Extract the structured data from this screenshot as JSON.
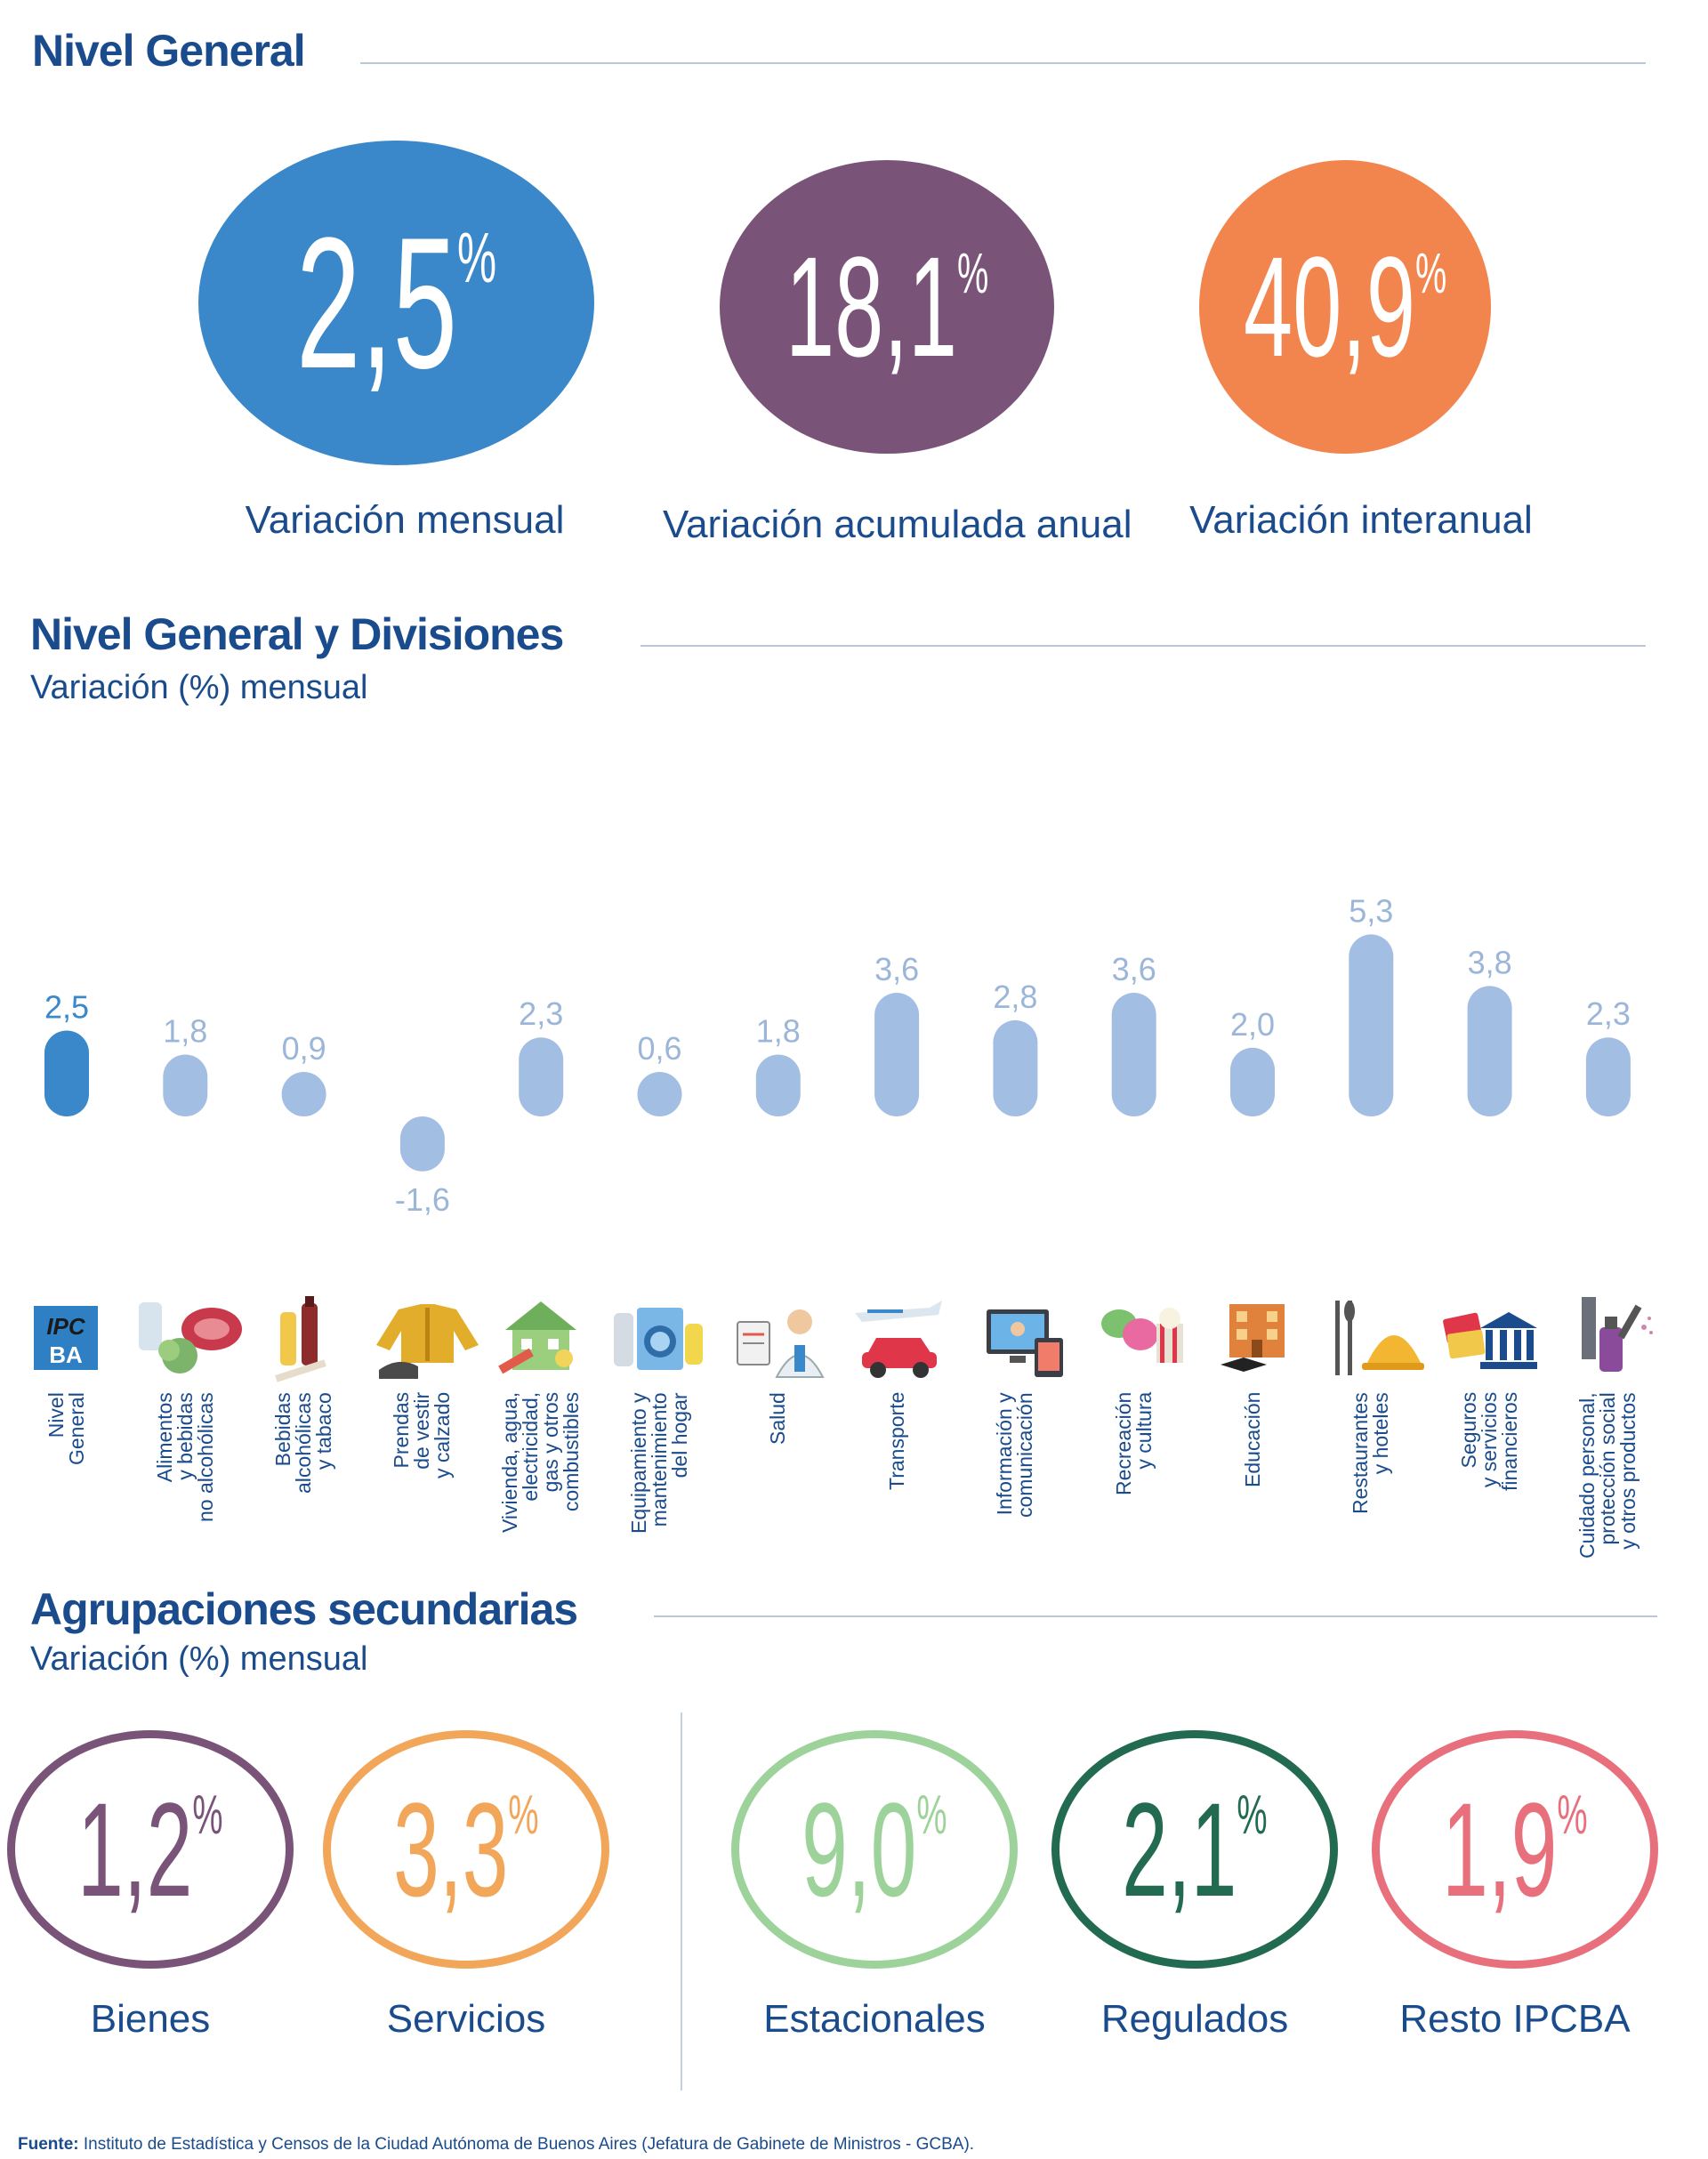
{
  "sections": {
    "general_title": "Nivel General",
    "divisions_title": "Nivel General y Divisiones",
    "divisions_subtitle": "Variación (%) mensual",
    "secondary_title": "Agrupaciones secundarias",
    "secondary_subtitle": "Variación (%) mensual"
  },
  "headline": [
    {
      "value": "2,5",
      "unit": "%",
      "label": "Variación mensual",
      "color": "#3a88c9"
    },
    {
      "value": "18,1",
      "unit": "%",
      "label": "Variación acumulada anual",
      "color": "#7a5478"
    },
    {
      "value": "40,9",
      "unit": "%",
      "label": "Variación interanual",
      "color": "#f2854e"
    }
  ],
  "chart_data": {
    "type": "bar",
    "title": "Nivel General y Divisiones",
    "subtitle": "Variación (%) mensual",
    "categories": [
      [
        "Nivel",
        "General"
      ],
      [
        "Alimentos",
        "y bebidas",
        "no alcohólicas"
      ],
      [
        "Bebidas",
        "alcohólicas",
        "y tabaco"
      ],
      [
        "Prendas",
        "de vestir",
        "y calzado"
      ],
      [
        "Vivienda, agua,",
        "electricidad,",
        "gas y otros",
        "combustibles"
      ],
      [
        "Equipamiento y",
        "mantenimiento",
        "del hogar"
      ],
      [
        "Salud"
      ],
      [
        "Transporte"
      ],
      [
        "Información y",
        "comunicación"
      ],
      [
        "Recreación",
        "y cultura"
      ],
      [
        "Educación"
      ],
      [
        "Restaurantes",
        "y hoteles"
      ],
      [
        "Seguros",
        "y servicios",
        "financieros"
      ],
      [
        "Cuidado personal,",
        "protección social",
        "y otros productos"
      ]
    ],
    "values": [
      2.5,
      1.8,
      0.9,
      -1.6,
      2.3,
      0.6,
      1.8,
      3.6,
      2.8,
      3.6,
      2.0,
      5.3,
      3.8,
      2.3
    ],
    "value_labels": [
      "2,5",
      "1,8",
      "0,9",
      "-1,6",
      "2,3",
      "0,6",
      "1,8",
      "3,6",
      "2,8",
      "3,6",
      "2,0",
      "5,3",
      "3,8",
      "2,3"
    ],
    "highlight_color": "#3a88c9",
    "bar_color": "#a3bee3",
    "label_color": "#9cb6d8",
    "grid": false
  },
  "icons": [
    "ipc-logo-icon",
    "food-icon",
    "beverages-icon",
    "clothing-icon",
    "housing-icon",
    "household-appliance-icon",
    "health-icon",
    "transport-icon",
    "communication-icon",
    "recreation-icon",
    "education-icon",
    "restaurant-icon",
    "finance-icon",
    "personal-care-icon"
  ],
  "ipc_logo": {
    "line1": "IPC",
    "line2": "BA"
  },
  "secondary": [
    {
      "value": "1,2",
      "unit": "%",
      "label": "Bienes",
      "color": "#7a5478"
    },
    {
      "value": "3,3",
      "unit": "%",
      "label": "Servicios",
      "color": "#f2a65a"
    },
    {
      "value": "9,0",
      "unit": "%",
      "label": "Estacionales",
      "color": "#9dd39b"
    },
    {
      "value": "2,1",
      "unit": "%",
      "label": "Regulados",
      "color": "#236b50"
    },
    {
      "value": "1,9",
      "unit": "%",
      "label": "Resto IPCBA",
      "color": "#e8707d"
    }
  ],
  "footer": {
    "label": "Fuente:",
    "text": " Instituto de Estadística y Censos de la Ciudad Autónoma de Buenos Aires (Jefatura de Gabinete de Ministros - GCBA)."
  }
}
